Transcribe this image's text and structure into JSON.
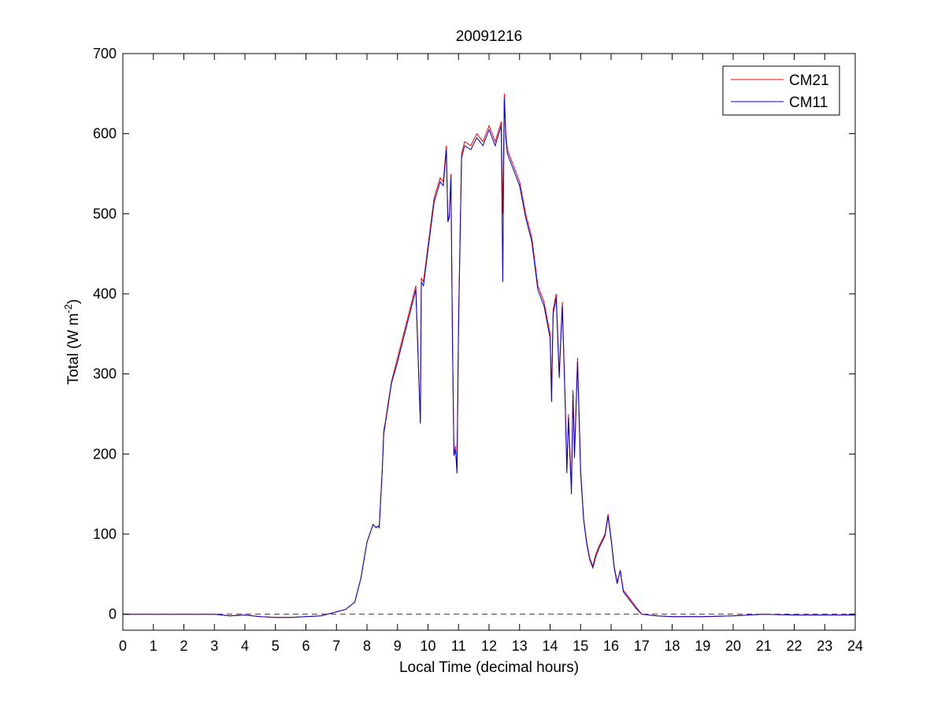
{
  "chart_data": {
    "type": "line",
    "title": "20091216",
    "xlabel": "Local Time (decimal hours)",
    "ylabel": {
      "base": "Total (W m",
      "sup": "-2",
      "close": ")"
    },
    "xlim": [
      0,
      24
    ],
    "ylim": [
      -20,
      700
    ],
    "xticks": [
      "0",
      "1",
      "2",
      "3",
      "4",
      "5",
      "6",
      "7",
      "8",
      "9",
      "10",
      "11",
      "12",
      "13",
      "14",
      "15",
      "16",
      "17",
      "18",
      "19",
      "20",
      "21",
      "22",
      "23",
      "24"
    ],
    "yticks": [
      "0",
      "100",
      "200",
      "300",
      "400",
      "500",
      "600",
      "700"
    ],
    "grid": false,
    "legend_position": "top-right",
    "reference_line": {
      "y": 0,
      "style": "dashed",
      "color": "#cc0000"
    },
    "series": [
      {
        "name": "CM21",
        "color": "#ff0000",
        "x": [
          0,
          1,
          2,
          3,
          3.5,
          4,
          4.5,
          5,
          5.5,
          6,
          6.5,
          7,
          7.3,
          7.6,
          7.8,
          8.0,
          8.2,
          8.3,
          8.35,
          8.4,
          8.5,
          8.55,
          8.6,
          8.7,
          8.8,
          9.0,
          9.2,
          9.4,
          9.6,
          9.75,
          9.78,
          9.85,
          10.0,
          10.2,
          10.4,
          10.5,
          10.6,
          10.65,
          10.7,
          10.75,
          10.8,
          10.85,
          10.9,
          10.95,
          11.0,
          11.1,
          11.2,
          11.4,
          11.6,
          11.8,
          12.0,
          12.2,
          12.4,
          12.45,
          12.5,
          12.55,
          12.6,
          12.8,
          13.0,
          13.2,
          13.4,
          13.6,
          13.8,
          14.0,
          14.05,
          14.1,
          14.2,
          14.3,
          14.4,
          14.5,
          14.55,
          14.6,
          14.7,
          14.75,
          14.8,
          14.9,
          15.0,
          15.1,
          15.2,
          15.3,
          15.4,
          15.5,
          15.6,
          15.8,
          15.9,
          16.0,
          16.1,
          16.2,
          16.3,
          16.4,
          16.6,
          16.8,
          17.0,
          17.5,
          18,
          19,
          20,
          21,
          22,
          23,
          24
        ],
        "y": [
          0,
          0,
          0,
          0,
          -2,
          -1,
          -3,
          -4,
          -4,
          -3,
          -2,
          3,
          6,
          15,
          45,
          90,
          112,
          108,
          110,
          108,
          180,
          230,
          240,
          265,
          290,
          320,
          350,
          380,
          410,
          240,
          420,
          415,
          460,
          520,
          545,
          540,
          585,
          490,
          500,
          550,
          350,
          200,
          210,
          180,
          370,
          575,
          590,
          585,
          600,
          590,
          610,
          590,
          615,
          500,
          650,
          600,
          580,
          560,
          540,
          500,
          470,
          410,
          390,
          350,
          280,
          380,
          400,
          300,
          390,
          260,
          180,
          250,
          160,
          280,
          200,
          320,
          180,
          120,
          90,
          70,
          60,
          75,
          85,
          100,
          125,
          95,
          60,
          40,
          55,
          30,
          20,
          10,
          0,
          -2,
          -3,
          -3,
          -2,
          0,
          -1,
          -1,
          -1
        ]
      },
      {
        "name": "CM11",
        "color": "#0000cc",
        "x": [
          0,
          1,
          2,
          3,
          3.5,
          4,
          4.5,
          5,
          5.5,
          6,
          6.5,
          7,
          7.3,
          7.6,
          7.8,
          8.0,
          8.2,
          8.3,
          8.35,
          8.4,
          8.5,
          8.55,
          8.6,
          8.7,
          8.8,
          9.0,
          9.2,
          9.4,
          9.6,
          9.75,
          9.78,
          9.85,
          10.0,
          10.2,
          10.4,
          10.5,
          10.6,
          10.65,
          10.7,
          10.75,
          10.8,
          10.85,
          10.9,
          10.95,
          11.0,
          11.1,
          11.2,
          11.4,
          11.6,
          11.8,
          12.0,
          12.2,
          12.4,
          12.45,
          12.5,
          12.55,
          12.6,
          12.8,
          13.0,
          13.2,
          13.4,
          13.6,
          13.8,
          14.0,
          14.05,
          14.1,
          14.2,
          14.3,
          14.4,
          14.5,
          14.55,
          14.6,
          14.7,
          14.75,
          14.8,
          14.9,
          15.0,
          15.1,
          15.2,
          15.3,
          15.4,
          15.5,
          15.6,
          15.8,
          15.9,
          16.0,
          16.1,
          16.2,
          16.3,
          16.4,
          16.6,
          16.8,
          17.0,
          17.5,
          18,
          19,
          20,
          21,
          22,
          23,
          24
        ],
        "y": [
          0,
          0,
          0,
          0,
          -2,
          -1,
          -3,
          -4,
          -4,
          -3,
          -2,
          3,
          6,
          15,
          45,
          90,
          112,
          108,
          110,
          108,
          180,
          225,
          238,
          262,
          288,
          315,
          345,
          375,
          405,
          238,
          415,
          410,
          455,
          515,
          540,
          535,
          580,
          490,
          495,
          545,
          345,
          198,
          205,
          176,
          360,
          570,
          585,
          580,
          595,
          585,
          605,
          585,
          610,
          415,
          645,
          595,
          575,
          555,
          535,
          495,
          465,
          405,
          385,
          345,
          265,
          375,
          395,
          295,
          385,
          255,
          176,
          245,
          150,
          275,
          195,
          315,
          176,
          118,
          88,
          68,
          58,
          72,
          82,
          98,
          122,
          93,
          58,
          38,
          55,
          28,
          18,
          8,
          0,
          -2,
          -3,
          -3,
          -2,
          0,
          -1,
          -1,
          -1
        ]
      }
    ]
  }
}
